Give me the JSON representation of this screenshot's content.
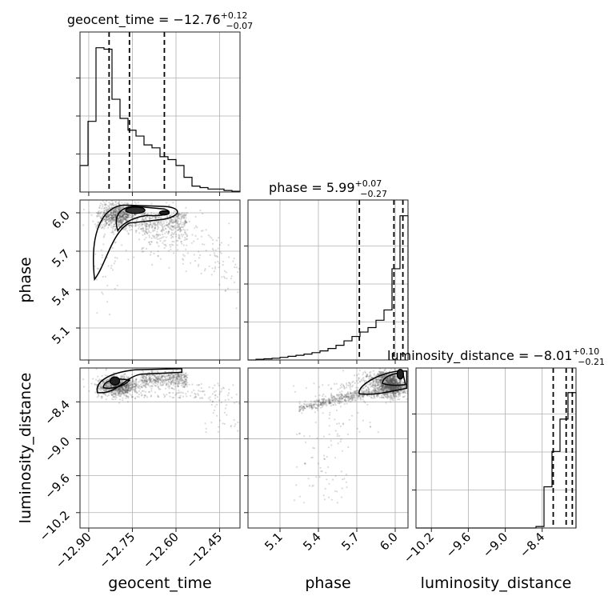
{
  "chart_data": {
    "type": "corner",
    "parameters": [
      "geocent_time",
      "phase",
      "luminosity_distance"
    ],
    "titles": [
      {
        "param": "geocent_time",
        "prefix": "geocent_time = ",
        "median": "−12.76",
        "plus": "+0.12",
        "minus": "−0.07"
      },
      {
        "param": "phase",
        "prefix": "phase = ",
        "median": "5.99",
        "plus": "+0.07",
        "minus": "−0.27"
      },
      {
        "param": "luminosity_distance",
        "prefix": "luminosity_distance = ",
        "median": "−8.01",
        "plus": "+0.10",
        "minus": "−0.21"
      }
    ],
    "axis_labels": {
      "x": [
        "geocent_time",
        "phase",
        "luminosity_distance"
      ],
      "y": [
        "phase",
        "luminosity_distance"
      ]
    },
    "ranges": {
      "geocent_time": [
        -12.93,
        -12.38
      ],
      "phase": [
        4.85,
        6.1
      ],
      "luminosity_distance": [
        -10.45,
        -7.85
      ]
    },
    "ticks": {
      "geocent_time": {
        "values": [
          -12.9,
          -12.75,
          -12.6,
          -12.45
        ],
        "labels": [
          "−12.90",
          "−12.75",
          "−12.60",
          "−12.45"
        ]
      },
      "phase": {
        "values": [
          5.1,
          5.4,
          5.7,
          6.0
        ],
        "labels": [
          "5.1",
          "5.4",
          "5.7",
          "6.0"
        ]
      },
      "luminosity_distance": {
        "values": [
          -10.2,
          -9.6,
          -9.0,
          -8.4
        ],
        "labels": [
          "−10.2",
          "−9.6",
          "−9.0",
          "−8.4"
        ]
      }
    },
    "histograms": {
      "geocent_time": {
        "edges": [
          -12.93,
          -12.9025,
          -12.875,
          -12.8475,
          -12.82,
          -12.7925,
          -12.765,
          -12.7375,
          -12.71,
          -12.6825,
          -12.655,
          -12.6275,
          -12.6,
          -12.5725,
          -12.545,
          -12.5175,
          -12.49,
          -12.4625,
          -12.435,
          -12.4075,
          -12.38
        ],
        "counts": [
          0.18,
          0.48,
          0.98,
          0.97,
          0.63,
          0.5,
          0.42,
          0.38,
          0.32,
          0.3,
          0.24,
          0.22,
          0.18,
          0.1,
          0.04,
          0.03,
          0.02,
          0.02,
          0.01,
          0.005
        ]
      },
      "phase": {
        "edges": [
          4.85,
          4.9125,
          4.975,
          5.0375,
          5.1,
          5.1625,
          5.225,
          5.2875,
          5.35,
          5.4125,
          5.475,
          5.5375,
          5.6,
          5.6625,
          5.725,
          5.7875,
          5.85,
          5.9125,
          5.975,
          6.0375,
          6.1
        ],
        "counts": [
          0.0,
          0.005,
          0.008,
          0.012,
          0.018,
          0.025,
          0.032,
          0.04,
          0.05,
          0.062,
          0.078,
          0.1,
          0.13,
          0.16,
          0.19,
          0.22,
          0.27,
          0.34,
          0.62,
          0.98
        ]
      },
      "luminosity_distance": {
        "edges": [
          -10.45,
          -10.32,
          -10.19,
          -10.06,
          -9.93,
          -9.8,
          -9.67,
          -9.54,
          -9.41,
          -9.28,
          -9.15,
          -9.02,
          -8.89,
          -8.76,
          -8.63,
          -8.5,
          -8.37,
          -8.24,
          -8.11,
          -7.98,
          -7.85
        ],
        "counts": [
          0,
          0,
          0,
          0,
          0,
          0,
          0,
          0,
          0,
          0,
          0,
          0,
          0,
          0,
          0,
          0.01,
          0.28,
          0.52,
          0.74,
          0.92
        ]
      }
    },
    "quantiles": {
      "geocent_time": [
        -12.83,
        -12.76,
        -12.64
      ],
      "phase": [
        5.72,
        5.99,
        6.06
      ],
      "luminosity_distance": [
        -8.22,
        -8.01,
        -7.91
      ]
    },
    "grid": true
  }
}
